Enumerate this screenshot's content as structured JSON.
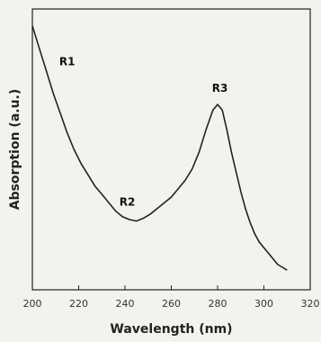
{
  "chart_data": {
    "type": "line",
    "xlabel": "Wavelength (nm)",
    "ylabel": "Absorption (a.u.)",
    "xlim": [
      200,
      320
    ],
    "ylim": [
      0,
      1
    ],
    "x_ticks": [
      "200",
      "220",
      "240",
      "260",
      "280",
      "300",
      "320"
    ],
    "grid": false,
    "legend": "none",
    "colors": {
      "line": "#222222",
      "frame": "#222222",
      "background": "#f4f2ee"
    },
    "series": [
      {
        "x": [
          200,
          203,
          206,
          209,
          212,
          215,
          218,
          221,
          224,
          227,
          230,
          233,
          236,
          239,
          242,
          245,
          248,
          251,
          254,
          257,
          260,
          263,
          266,
          269,
          272,
          275,
          278,
          280,
          282,
          284,
          286,
          288,
          290,
          292,
          294,
          296,
          298,
          300,
          302,
          304,
          306,
          308,
          310
        ],
        "values": [
          0.94,
          0.86,
          0.78,
          0.7,
          0.63,
          0.56,
          0.5,
          0.45,
          0.41,
          0.37,
          0.34,
          0.31,
          0.28,
          0.26,
          0.25,
          0.245,
          0.255,
          0.27,
          0.29,
          0.31,
          0.33,
          0.36,
          0.39,
          0.43,
          0.49,
          0.57,
          0.64,
          0.66,
          0.64,
          0.57,
          0.49,
          0.42,
          0.35,
          0.29,
          0.24,
          0.2,
          0.17,
          0.15,
          0.13,
          0.11,
          0.09,
          0.08,
          0.07
        ]
      }
    ],
    "annotations": [
      {
        "text": "R1",
        "x": 215,
        "y": 0.8
      },
      {
        "text": "R2",
        "x": 241,
        "y": 0.3
      },
      {
        "text": "R3",
        "x": 281,
        "y": 0.705
      }
    ]
  }
}
